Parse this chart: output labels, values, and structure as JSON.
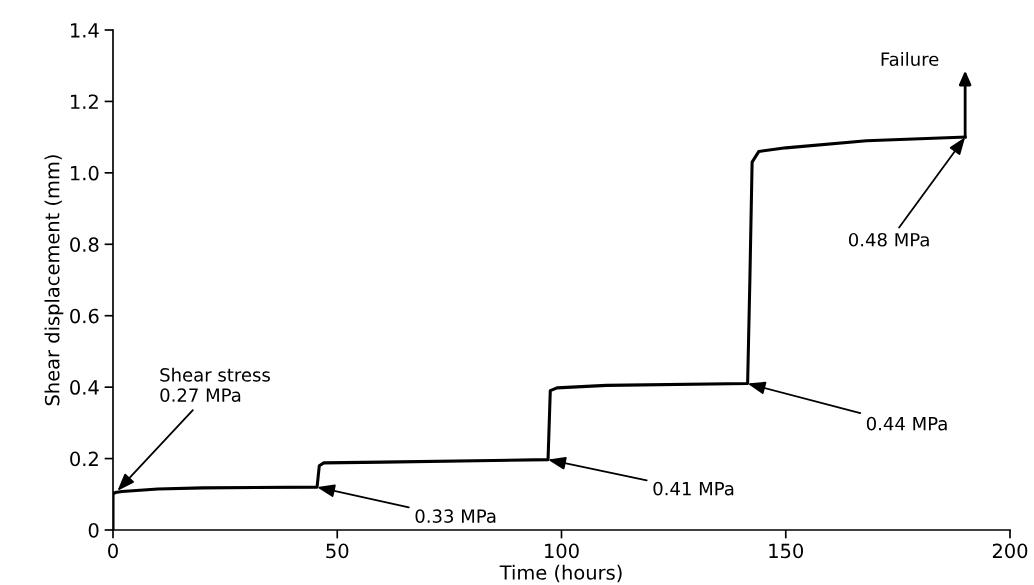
{
  "chart_data": {
    "type": "line",
    "xlabel": "Time (hours)",
    "ylabel": "Shear displacement (mm)",
    "x": [
      0,
      0,
      0.5,
      2,
      10,
      20,
      45.5,
      46,
      47,
      60,
      97,
      97.5,
      99,
      110,
      141.5,
      142,
      142.5,
      144,
      150,
      168,
      190
    ],
    "series": [
      {
        "color": "#000000",
        "values": [
          0,
          0.1,
          0.105,
          0.108,
          0.115,
          0.118,
          0.12,
          0.18,
          0.188,
          0.19,
          0.197,
          0.39,
          0.398,
          0.405,
          0.41,
          0.7,
          1.03,
          1.06,
          1.07,
          1.09,
          1.1
        ]
      }
    ],
    "xlim": [
      0,
      200
    ],
    "ylim": [
      0,
      1.4
    ],
    "xticks": [
      0,
      50,
      100,
      150,
      200
    ],
    "yticks": [
      0,
      0.2,
      0.4,
      0.6,
      0.8,
      {
        "value": 1,
        "label": "1.0"
      },
      1.2,
      1.4
    ],
    "grid": false,
    "legend": false,
    "marker": "none",
    "line_style": "solid",
    "annotations": [
      {
        "text": "Shear stress\n0.27 MPa",
        "x": 1,
        "y": 0.11
      },
      {
        "text": "0.33 MPa",
        "x": 45.5,
        "y": 0.12
      },
      {
        "text": "0.41 MPa",
        "x": 97,
        "y": 0.197
      },
      {
        "text": "0.44 MPa",
        "x": 141.5,
        "y": 0.41
      },
      {
        "text": "0.48 MPa",
        "x": 190,
        "y": 1.1
      },
      "Failure"
    ]
  }
}
